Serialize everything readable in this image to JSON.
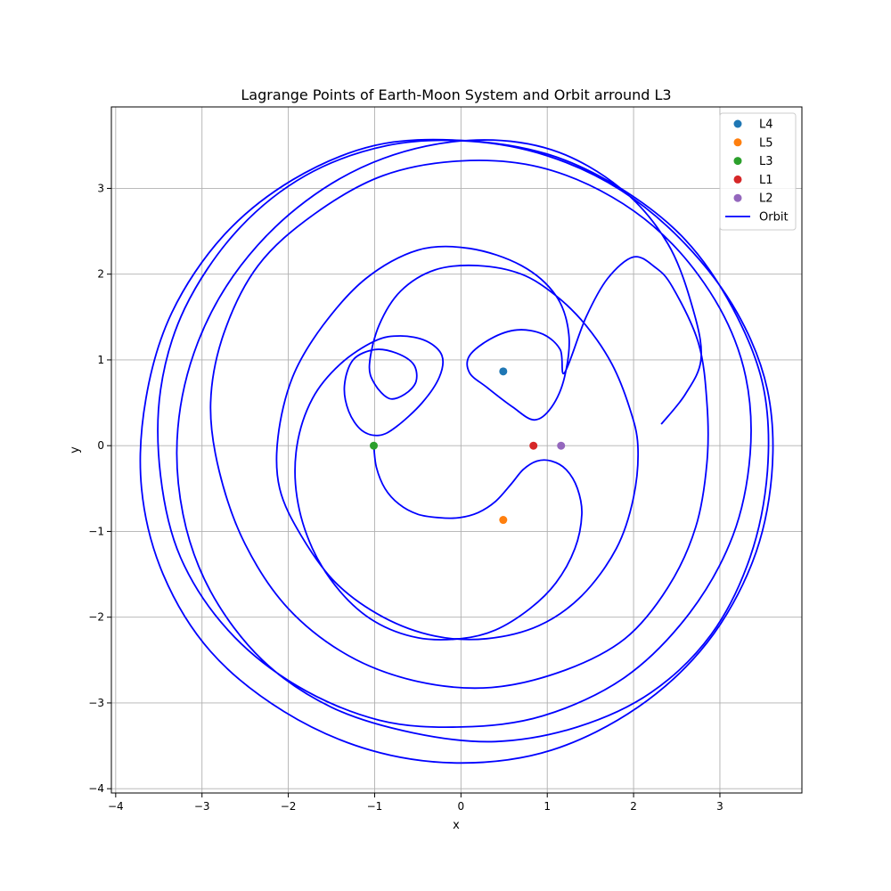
{
  "chart_data": {
    "type": "scatter",
    "title": "Lagrange Points of Earth-Moon System and Orbit arround L3",
    "xlabel": "x",
    "ylabel": "y",
    "xlim": [
      -4.05,
      3.95
    ],
    "ylim": [
      -4.05,
      3.95
    ],
    "xticks": [
      -4,
      -3,
      -2,
      -1,
      0,
      1,
      2,
      3
    ],
    "yticks": [
      -4,
      -3,
      -2,
      -1,
      0,
      1,
      2,
      3
    ],
    "xtick_labels": [
      "−4",
      "−3",
      "−2",
      "−1",
      "0",
      "1",
      "2",
      "3"
    ],
    "ytick_labels": [
      "−4",
      "−3",
      "−2",
      "−1",
      "0",
      "1",
      "2",
      "3"
    ],
    "grid": true,
    "legend_position": "top-right",
    "points": [
      {
        "name": "L4",
        "x": 0.49,
        "y": 0.866,
        "color": "#1f77b4"
      },
      {
        "name": "L5",
        "x": 0.49,
        "y": -0.866,
        "color": "#ff7f0e"
      },
      {
        "name": "L3",
        "x": -1.01,
        "y": 0.0,
        "color": "#2ca02c"
      },
      {
        "name": "L1",
        "x": 0.84,
        "y": 0.0,
        "color": "#d62728"
      },
      {
        "name": "L2",
        "x": 1.16,
        "y": 0.0,
        "color": "#9467bd"
      }
    ],
    "orbit": {
      "name": "Orbit",
      "color": "#0000ff",
      "points": [
        [
          -1.01,
          0.0
        ],
        [
          -0.98,
          -0.25
        ],
        [
          -0.88,
          -0.5
        ],
        [
          -0.72,
          -0.68
        ],
        [
          -0.5,
          -0.8
        ],
        [
          -0.25,
          -0.84
        ],
        [
          -0.02,
          -0.84
        ],
        [
          0.2,
          -0.78
        ],
        [
          0.4,
          -0.65
        ],
        [
          0.58,
          -0.45
        ],
        [
          0.72,
          -0.28
        ],
        [
          0.88,
          -0.18
        ],
        [
          1.05,
          -0.18
        ],
        [
          1.22,
          -0.28
        ],
        [
          1.35,
          -0.5
        ],
        [
          1.4,
          -0.8
        ],
        [
          1.32,
          -1.2
        ],
        [
          1.1,
          -1.6
        ],
        [
          0.8,
          -1.9
        ],
        [
          0.4,
          -2.15
        ],
        [
          0.0,
          -2.25
        ],
        [
          -0.5,
          -2.24
        ],
        [
          -1.0,
          -2.05
        ],
        [
          -1.4,
          -1.7
        ],
        [
          -1.72,
          -1.2
        ],
        [
          -1.9,
          -0.6
        ],
        [
          -1.9,
          0.0
        ],
        [
          -1.72,
          0.55
        ],
        [
          -1.4,
          0.95
        ],
        [
          -1.0,
          1.22
        ],
        [
          -0.7,
          1.28
        ],
        [
          -0.4,
          1.22
        ],
        [
          -0.22,
          1.05
        ],
        [
          -0.25,
          0.8
        ],
        [
          -0.45,
          0.5
        ],
        [
          -0.75,
          0.22
        ],
        [
          -0.95,
          0.12
        ],
        [
          -1.15,
          0.18
        ],
        [
          -1.3,
          0.4
        ],
        [
          -1.35,
          0.7
        ],
        [
          -1.25,
          1.0
        ],
        [
          -1.0,
          1.12
        ],
        [
          -0.75,
          1.08
        ],
        [
          -0.55,
          0.95
        ],
        [
          -0.52,
          0.75
        ],
        [
          -0.65,
          0.6
        ],
        [
          -0.83,
          0.55
        ],
        [
          -1.0,
          0.72
        ],
        [
          -1.06,
          0.95
        ],
        [
          -0.95,
          1.4
        ],
        [
          -0.7,
          1.8
        ],
        [
          -0.3,
          2.05
        ],
        [
          0.2,
          2.1
        ],
        [
          0.7,
          2.0
        ],
        [
          1.1,
          1.75
        ],
        [
          1.45,
          1.4
        ],
        [
          1.75,
          0.95
        ],
        [
          1.95,
          0.45
        ],
        [
          2.05,
          0.0
        ],
        [
          2.0,
          -0.6
        ],
        [
          1.8,
          -1.2
        ],
        [
          1.4,
          -1.75
        ],
        [
          0.9,
          -2.1
        ],
        [
          0.3,
          -2.25
        ],
        [
          -0.3,
          -2.22
        ],
        [
          -0.9,
          -2.0
        ],
        [
          -1.45,
          -1.6
        ],
        [
          -1.85,
          -1.05
        ],
        [
          -2.1,
          -0.5
        ],
        [
          -2.12,
          0.1
        ],
        [
          -1.95,
          0.8
        ],
        [
          -1.6,
          1.4
        ],
        [
          -1.1,
          1.95
        ],
        [
          -0.5,
          2.28
        ],
        [
          0.1,
          2.3
        ],
        [
          0.7,
          2.1
        ],
        [
          1.1,
          1.75
        ],
        [
          1.25,
          1.3
        ],
        [
          1.2,
          0.8
        ],
        [
          1.05,
          0.45
        ],
        [
          0.85,
          0.3
        ],
        [
          0.6,
          0.45
        ],
        [
          0.3,
          0.68
        ],
        [
          0.1,
          0.85
        ],
        [
          0.1,
          1.05
        ],
        [
          0.35,
          1.25
        ],
        [
          0.65,
          1.35
        ],
        [
          0.95,
          1.3
        ],
        [
          1.15,
          1.12
        ],
        [
          1.2,
          0.85
        ],
        [
          1.45,
          1.5
        ],
        [
          1.7,
          1.95
        ],
        [
          2.0,
          2.2
        ],
        [
          2.25,
          2.08
        ],
        [
          2.45,
          1.85
        ],
        [
          2.75,
          1.2
        ],
        [
          2.85,
          0.5
        ],
        [
          2.85,
          -0.2
        ],
        [
          2.72,
          -0.95
        ],
        [
          2.4,
          -1.65
        ],
        [
          1.9,
          -2.25
        ],
        [
          1.2,
          -2.62
        ],
        [
          0.35,
          -2.82
        ],
        [
          -0.5,
          -2.75
        ],
        [
          -1.3,
          -2.45
        ],
        [
          -2.0,
          -1.9
        ],
        [
          -2.5,
          -1.15
        ],
        [
          -2.8,
          -0.3
        ],
        [
          -2.9,
          0.5
        ],
        [
          -2.75,
          1.3
        ],
        [
          -2.35,
          2.1
        ],
        [
          -1.7,
          2.7
        ],
        [
          -0.9,
          3.15
        ],
        [
          0.0,
          3.32
        ],
        [
          0.9,
          3.25
        ],
        [
          1.75,
          2.9
        ],
        [
          2.45,
          2.35
        ],
        [
          3.0,
          1.6
        ],
        [
          3.3,
          0.8
        ],
        [
          3.35,
          -0.1
        ],
        [
          3.15,
          -1.05
        ],
        [
          2.65,
          -1.95
        ],
        [
          1.9,
          -2.7
        ],
        [
          0.95,
          -3.15
        ],
        [
          0.0,
          -3.28
        ],
        [
          -0.95,
          -3.2
        ],
        [
          -1.9,
          -2.8
        ],
        [
          -2.7,
          -2.15
        ],
        [
          -3.25,
          -1.3
        ],
        [
          -3.48,
          -0.35
        ],
        [
          -3.48,
          0.65
        ],
        [
          -3.2,
          1.6
        ],
        [
          -2.6,
          2.5
        ],
        [
          -1.8,
          3.15
        ],
        [
          -0.85,
          3.5
        ],
        [
          0.1,
          3.55
        ],
        [
          1.0,
          3.38
        ],
        [
          1.85,
          2.98
        ],
        [
          2.6,
          2.35
        ],
        [
          3.2,
          1.55
        ],
        [
          3.55,
          0.65
        ],
        [
          3.6,
          -0.35
        ],
        [
          3.38,
          -1.35
        ],
        [
          2.85,
          -2.3
        ],
        [
          2.05,
          -3.05
        ],
        [
          1.05,
          -3.55
        ],
        [
          0.0,
          -3.7
        ],
        [
          -1.05,
          -3.55
        ],
        [
          -2.05,
          -3.1
        ],
        [
          -2.9,
          -2.4
        ],
        [
          -3.45,
          -1.5
        ],
        [
          -3.7,
          -0.5
        ],
        [
          -3.65,
          0.55
        ],
        [
          -3.35,
          1.55
        ],
        [
          -2.75,
          2.45
        ],
        [
          -1.95,
          3.1
        ],
        [
          -1.0,
          3.5
        ],
        [
          0.0,
          3.56
        ],
        [
          1.0,
          3.4
        ],
        [
          1.85,
          3.0
        ],
        [
          2.6,
          2.4
        ],
        [
          3.15,
          1.6
        ],
        [
          3.5,
          0.7
        ],
        [
          3.55,
          -0.3
        ],
        [
          3.35,
          -1.3
        ],
        [
          2.9,
          -2.2
        ],
        [
          2.2,
          -2.88
        ],
        [
          1.35,
          -3.28
        ],
        [
          0.4,
          -3.45
        ],
        [
          -0.55,
          -3.35
        ],
        [
          -1.5,
          -3.05
        ],
        [
          -2.3,
          -2.5
        ],
        [
          -2.9,
          -1.7
        ],
        [
          -3.22,
          -0.8
        ],
        [
          -3.28,
          0.2
        ],
        [
          -3.05,
          1.2
        ],
        [
          -2.55,
          2.1
        ],
        [
          -1.8,
          2.85
        ],
        [
          -0.9,
          3.35
        ],
        [
          0.1,
          3.56
        ],
        [
          1.05,
          3.45
        ],
        [
          1.85,
          3.0
        ],
        [
          2.4,
          2.35
        ],
        [
          2.7,
          1.55
        ],
        [
          2.78,
          1.0
        ],
        [
          2.6,
          0.6
        ],
        [
          2.32,
          0.25
        ]
      ]
    }
  }
}
